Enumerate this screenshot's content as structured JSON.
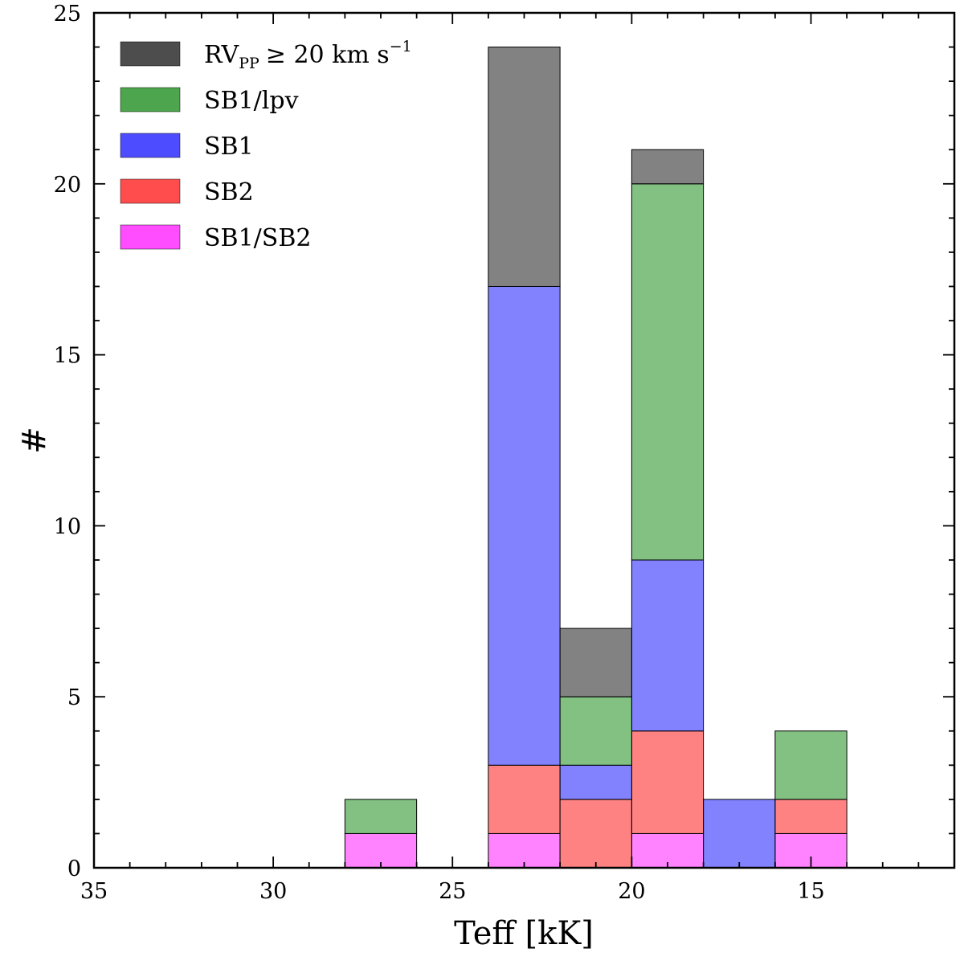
{
  "chart_data": {
    "type": "bar",
    "stacked": true,
    "title": "",
    "xlabel": "Teff [kK]",
    "ylabel": "#",
    "xlim": [
      35,
      11
    ],
    "ylim": [
      0,
      25
    ],
    "x_inverted": true,
    "xticks": [
      35,
      30,
      25,
      20,
      15
    ],
    "yticks": [
      0,
      5,
      10,
      15,
      20,
      25
    ],
    "xticks_minor_step": 1,
    "yticks_minor_step": 1,
    "bin_edges": [
      28,
      26,
      24,
      22,
      20,
      18,
      16,
      14
    ],
    "series": [
      {
        "name": "SB1/SB2",
        "legend_label": "SB1/SB2",
        "color": "#ff4dff",
        "values": [
          1,
          0,
          1,
          0,
          1,
          0,
          1
        ]
      },
      {
        "name": "SB2",
        "legend_label": "SB2",
        "color": "#ff4d4d",
        "values": [
          0,
          0,
          2,
          2,
          3,
          0,
          1
        ]
      },
      {
        "name": "SB1",
        "legend_label": "SB1",
        "color": "#4d4dff",
        "values": [
          0,
          0,
          14,
          1,
          5,
          2,
          0
        ]
      },
      {
        "name": "SB1/lpv",
        "legend_label": "SB1/lpv",
        "color": "#4da64d",
        "values": [
          1,
          0,
          0,
          2,
          11,
          0,
          2
        ]
      },
      {
        "name": "RVpp >= 20 km s^-1",
        "legend_label": "RV",
        "legend_sub": "PP",
        "legend_rest": "≥ 20 km s",
        "legend_sup": "−1",
        "color": "#4d4d4d",
        "values": [
          0,
          0,
          7,
          2,
          1,
          0,
          0
        ]
      }
    ],
    "legend_order": [
      "RVpp >= 20 km s^-1",
      "SB1/lpv",
      "SB1",
      "SB2",
      "SB1/SB2"
    ],
    "legend_position": "top-left",
    "grid": false
  }
}
